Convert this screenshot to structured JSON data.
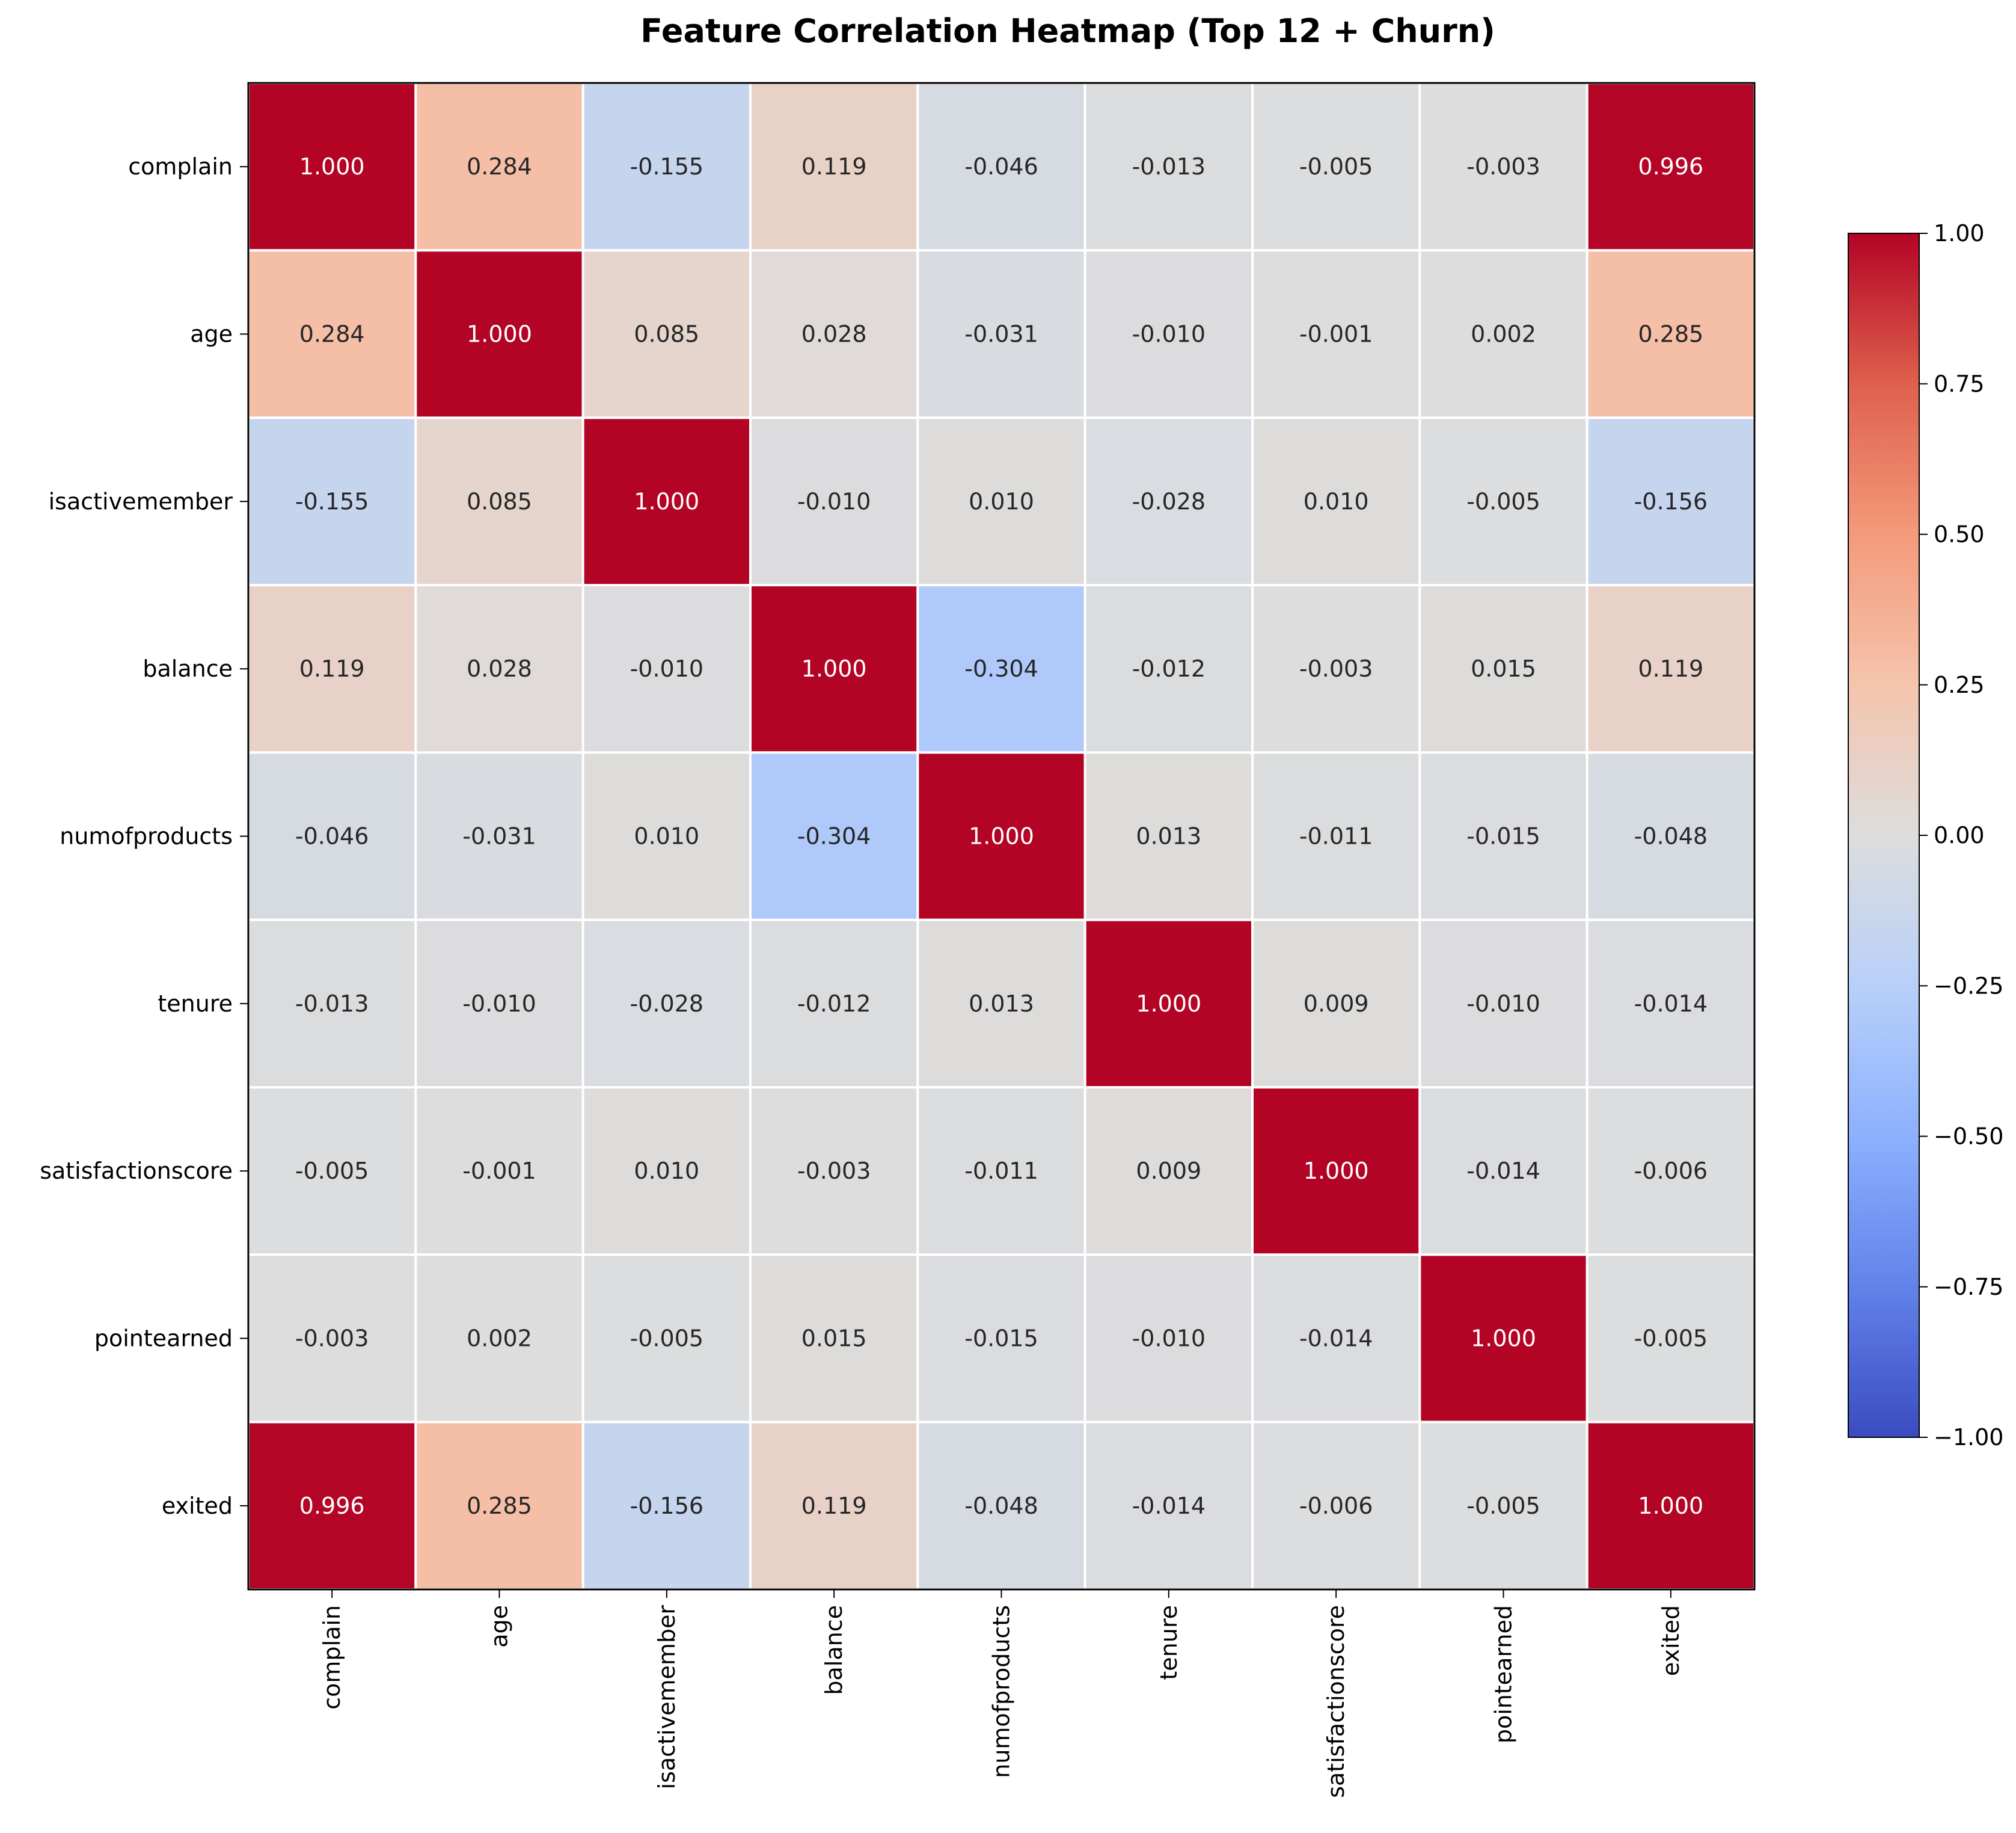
{
  "chart_data": {
    "type": "heatmap",
    "title": "Feature Correlation Heatmap (Top 12 + Churn)",
    "rows": [
      "complain",
      "age",
      "isactivemember",
      "balance",
      "numofproducts",
      "tenure",
      "satisfactionscore",
      "pointearned",
      "exited"
    ],
    "columns": [
      "complain",
      "age",
      "isactivemember",
      "balance",
      "numofproducts",
      "tenure",
      "satisfactionscore",
      "pointearned",
      "exited"
    ],
    "values": [
      [
        1.0,
        0.284,
        -0.155,
        0.119,
        -0.046,
        -0.013,
        -0.005,
        -0.003,
        0.996
      ],
      [
        0.284,
        1.0,
        0.085,
        0.028,
        -0.031,
        -0.01,
        -0.001,
        0.002,
        0.285
      ],
      [
        -0.155,
        0.085,
        1.0,
        -0.01,
        0.01,
        -0.028,
        0.01,
        -0.005,
        -0.156
      ],
      [
        0.119,
        0.028,
        -0.01,
        1.0,
        -0.304,
        -0.012,
        -0.003,
        0.015,
        0.119
      ],
      [
        -0.046,
        -0.031,
        0.01,
        -0.304,
        1.0,
        0.013,
        -0.011,
        -0.015,
        -0.048
      ],
      [
        -0.013,
        -0.01,
        -0.028,
        -0.012,
        0.013,
        1.0,
        0.009,
        -0.01,
        -0.014
      ],
      [
        -0.005,
        -0.001,
        0.01,
        -0.003,
        -0.011,
        0.009,
        1.0,
        -0.014,
        -0.006
      ],
      [
        -0.003,
        0.002,
        -0.005,
        0.015,
        -0.015,
        -0.01,
        -0.014,
        1.0,
        -0.005
      ],
      [
        0.996,
        0.285,
        -0.156,
        0.119,
        -0.048,
        -0.014,
        -0.006,
        -0.005,
        1.0
      ]
    ],
    "value_format": "3 decimals",
    "colorbar": {
      "range": [
        -1.0,
        1.0
      ],
      "ticks": [
        "1.00",
        "0.75",
        "0.50",
        "0.25",
        "0.00",
        "−0.25",
        "−0.50",
        "−0.75",
        "−1.00"
      ],
      "tick_values": [
        1.0,
        0.75,
        0.5,
        0.25,
        0.0,
        -0.25,
        -0.5,
        -0.75,
        -1.0
      ],
      "colormap": "coolwarm",
      "placement": "right"
    },
    "grid": "white cell borders"
  }
}
